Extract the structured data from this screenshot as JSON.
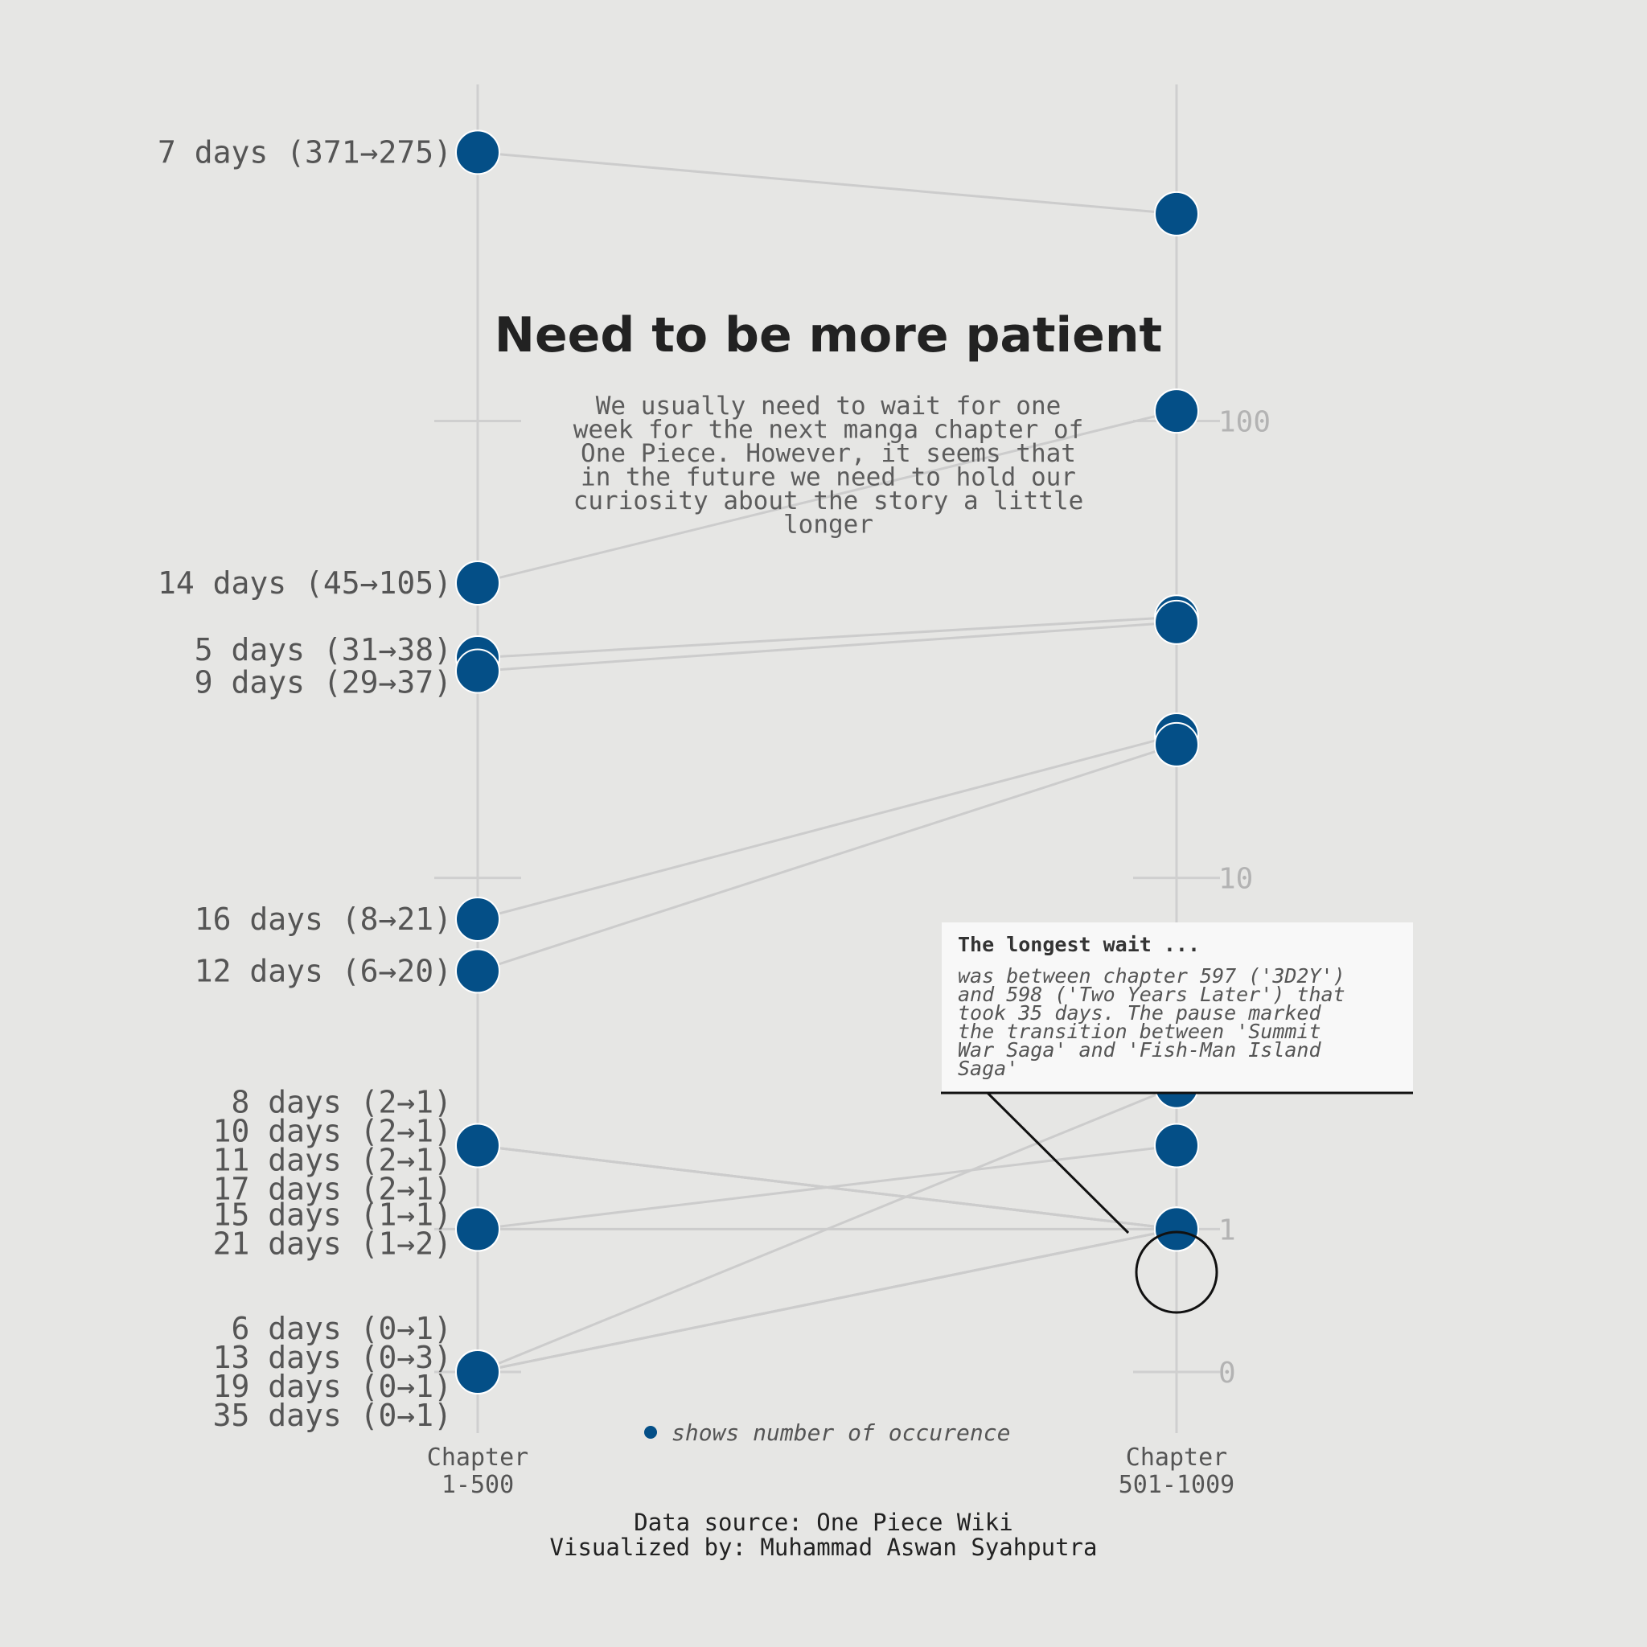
{
  "chart_data": {
    "type": "slope",
    "title": "Need to be more patient",
    "subtitle": [
      "We usually need to wait for one",
      "week for the next manga chapter of",
      "One Piece. However, it seems that",
      "in the future we need to hold our",
      "curiosity about the story a little",
      "longer"
    ],
    "categories": [
      "Chapter\n1-500",
      "Chapter\n501-1009"
    ],
    "category_lines": [
      [
        "Chapter",
        "1-500"
      ],
      [
        "Chapter",
        "501-1009"
      ]
    ],
    "y_scale": "symlog",
    "y_ticks": [
      0,
      1,
      10,
      100
    ],
    "y_tick_labels": [
      "0",
      "1",
      "10",
      "100"
    ],
    "series": [
      {
        "name": "7 days",
        "values": [
          371,
          275
        ]
      },
      {
        "name": "14 days",
        "values": [
          45,
          105
        ]
      },
      {
        "name": "5 days",
        "values": [
          31,
          38
        ]
      },
      {
        "name": "9 days",
        "values": [
          29,
          37
        ]
      },
      {
        "name": "16 days",
        "values": [
          8,
          21
        ]
      },
      {
        "name": "12 days",
        "values": [
          6,
          20
        ]
      },
      {
        "name": "8 days",
        "values": [
          2,
          1
        ]
      },
      {
        "name": "10 days",
        "values": [
          2,
          1
        ]
      },
      {
        "name": "11 days",
        "values": [
          2,
          1
        ]
      },
      {
        "name": "17 days",
        "values": [
          2,
          1
        ]
      },
      {
        "name": "15 days",
        "values": [
          1,
          1
        ]
      },
      {
        "name": "21 days",
        "values": [
          1,
          2
        ]
      },
      {
        "name": "6 days",
        "values": [
          0,
          1
        ]
      },
      {
        "name": "13 days",
        "values": [
          0,
          3
        ]
      },
      {
        "name": "19 days",
        "values": [
          0,
          1
        ]
      },
      {
        "name": "35 days",
        "values": [
          0,
          1
        ]
      }
    ],
    "left_labels": [
      "7 days (371→275)",
      "14 days (45→105)",
      "5 days (31→38)",
      "9 days (29→37)",
      "16 days (8→21)",
      "12 days (6→20)",
      " 8 days (2→1)",
      "10 days (2→1)",
      "11 days (2→1)",
      "17 days (2→1)",
      "15 days (1→1)",
      "21 days (1→2)",
      " 6 days (0→1)",
      "13 days (0→3)",
      "19 days (0→1)",
      "35 days (0→1)"
    ],
    "highlight": {
      "series": "35 days",
      "value": 1
    },
    "annotation": {
      "title": "The longest wait ...",
      "body": [
        "was between chapter 597 ('3D2Y')",
        "and 598 ('Two Years Later') that",
        "took 35 days. The pause marked",
        "the transition between 'Summit",
        "War Saga' and 'Fish-Man Island",
        "Saga'"
      ]
    },
    "legend": "shows number of occurence",
    "colors": {
      "point": "#044f87",
      "line": "#cccccc",
      "background": "#e6e6e4"
    }
  },
  "credits": [
    "Data source: One Piece Wiki",
    "Visualized by: Muhammad Aswan Syahputra"
  ]
}
